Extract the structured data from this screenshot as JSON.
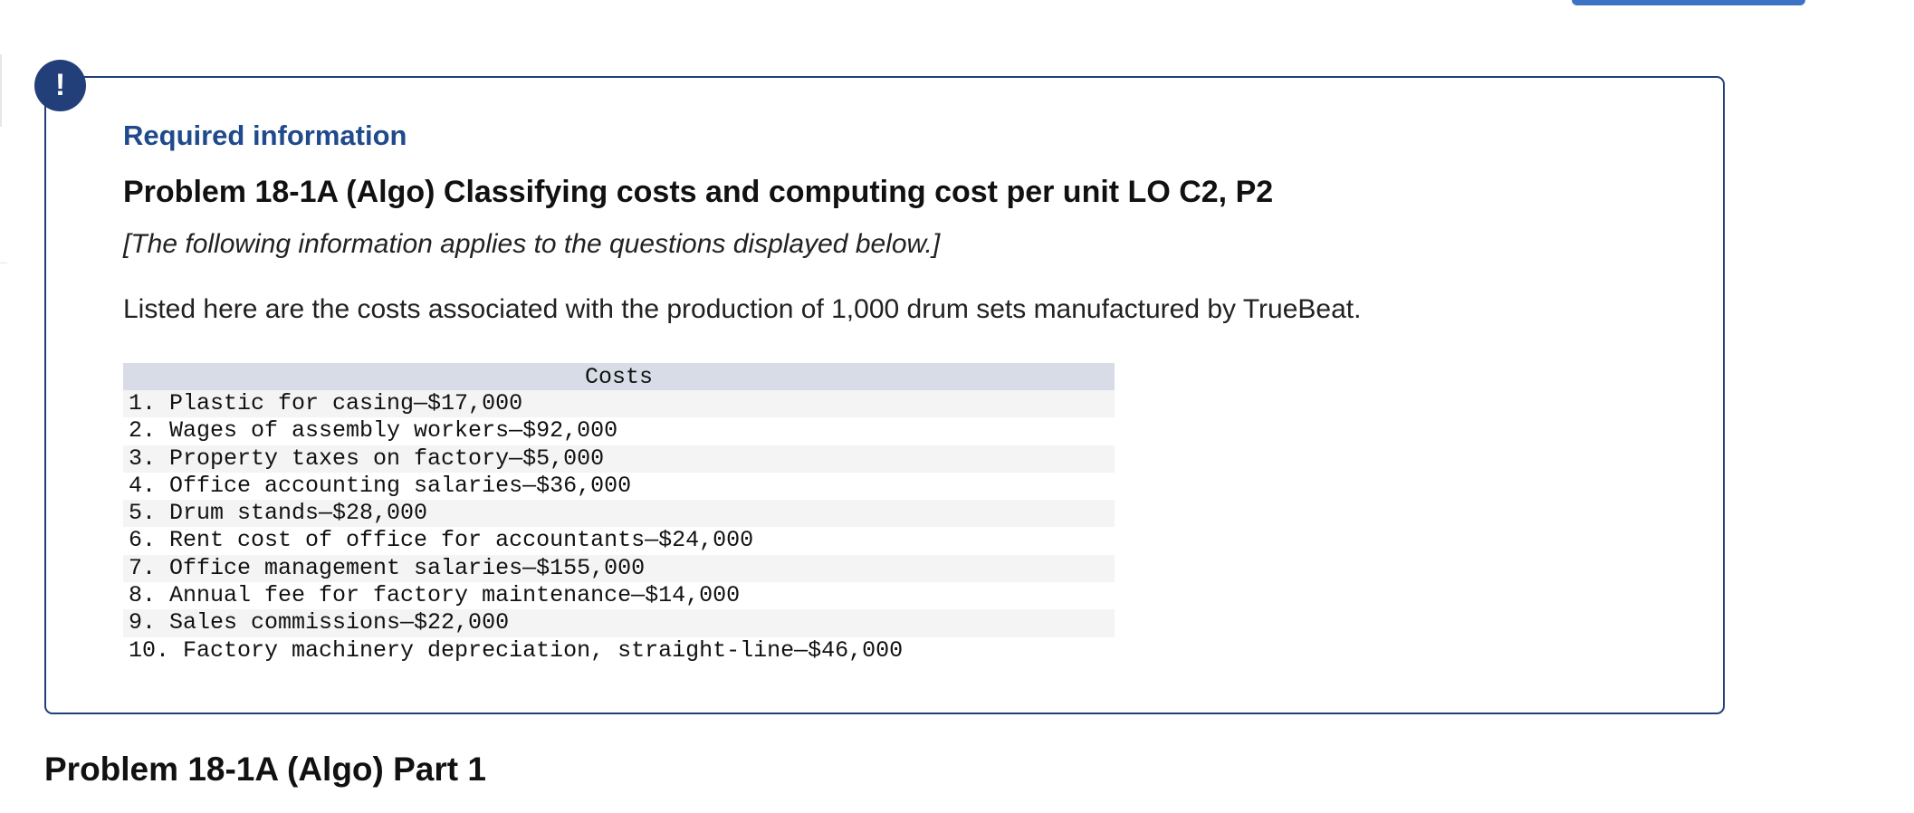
{
  "info": {
    "badge_symbol": "!",
    "required_label": "Required information",
    "problem_title": "Problem 18-1A (Algo) Classifying costs and computing cost per unit LO C2, P2",
    "note": "[The following information applies to the questions displayed below.]",
    "intro": "Listed here are the costs associated with the production of 1,000 drum sets manufactured by TrueBeat."
  },
  "costs_table": {
    "header": "Costs",
    "rows": [
      "1. Plastic for casing—$17,000",
      "2. Wages of assembly workers—$92,000",
      "3. Property taxes on factory—$5,000",
      "4. Office accounting salaries—$36,000",
      "5. Drum stands—$28,000",
      "6. Rent cost of office for accountants—$24,000",
      "7. Office management salaries—$155,000",
      "8. Annual fee for factory maintenance—$14,000",
      "9. Sales commissions—$22,000",
      "10. Factory machinery depreciation, straight-line—$46,000"
    ]
  },
  "part": {
    "heading": "Problem 18-1A (Algo) Part 1"
  },
  "colors": {
    "accent": "#223f7a",
    "label_blue": "#1f4a8b",
    "header_bg": "#d7dce6",
    "stripe_bg": "#f4f4f4"
  }
}
